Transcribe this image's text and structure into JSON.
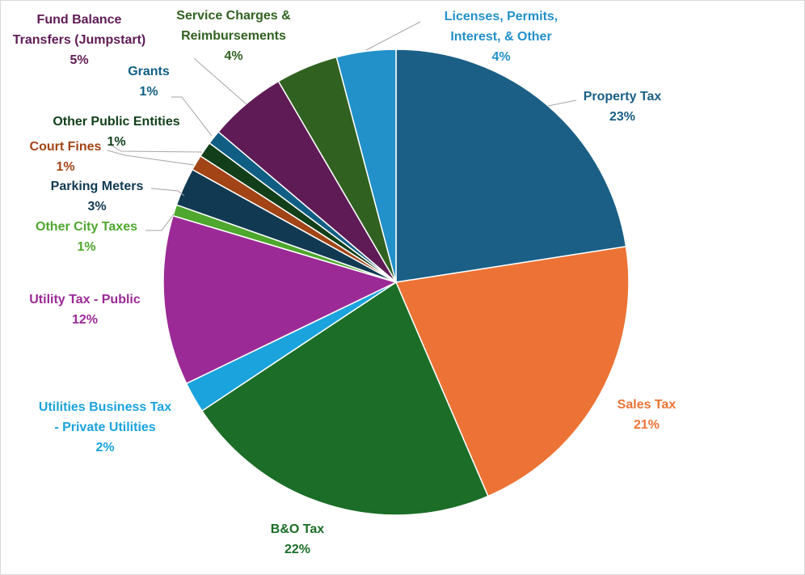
{
  "chart_data": {
    "type": "pie",
    "start_angle_deg": 0,
    "direction": "clockwise",
    "slices": [
      {
        "label": [
          "Property Tax"
        ],
        "pct": "23%",
        "value": 23.0,
        "color": "#1b5f86",
        "text_color": "#1b5f86"
      },
      {
        "label": [
          "Sales Tax"
        ],
        "pct": "21%",
        "value": 21.4,
        "color": "#ec7335",
        "text_color": "#ec7335"
      },
      {
        "label": [
          "B&O Tax"
        ],
        "pct": "22%",
        "value": 22.6,
        "color": "#1b6d27",
        "text_color": "#1b6d27"
      },
      {
        "label": [
          "Utilities Business Tax",
          "- Private Utilities"
        ],
        "pct": "2%",
        "value": 2.2,
        "color": "#1aa3dc",
        "text_color": "#1aa3dc"
      },
      {
        "label": [
          "Utility Tax - Public"
        ],
        "pct": "12%",
        "value": 12.0,
        "color": "#9b2a96",
        "text_color": "#9b2a96"
      },
      {
        "label": [
          "Other City Taxes"
        ],
        "pct": "1%",
        "value": 0.8,
        "color": "#4ea72e",
        "text_color": "#4ea72e"
      },
      {
        "label": [
          "Parking Meters"
        ],
        "pct": "3%",
        "value": 2.7,
        "color": "#113a52",
        "text_color": "#113a52"
      },
      {
        "label": [
          "Court Fines"
        ],
        "pct": "1%",
        "value": 1.1,
        "color": "#a24416",
        "text_color": "#a24416"
      },
      {
        "label": [
          "Other Public Entities"
        ],
        "pct": "1%",
        "value": 1.1,
        "color": "#123f1a",
        "text_color": "#123f1a"
      },
      {
        "label": [
          "Grants"
        ],
        "pct": "1%",
        "value": 1.0,
        "color": "#115e85",
        "text_color": "#115e85"
      },
      {
        "label": [
          "Fund Balance",
          "Transfers (Jumpstart)"
        ],
        "pct": "5%",
        "value": 5.5,
        "color": "#5f1b56",
        "text_color": "#5f1b56"
      },
      {
        "label": [
          "Service Charges &",
          "Reimbursements"
        ],
        "pct": "4%",
        "value": 4.4,
        "color": "#316121",
        "text_color": "#316121"
      },
      {
        "label": [
          "Licenses, Permits,",
          "Interest, & Other"
        ],
        "pct": "4%",
        "value": 4.2,
        "color": "#2290c9",
        "text_color": "#2290c9"
      }
    ]
  }
}
